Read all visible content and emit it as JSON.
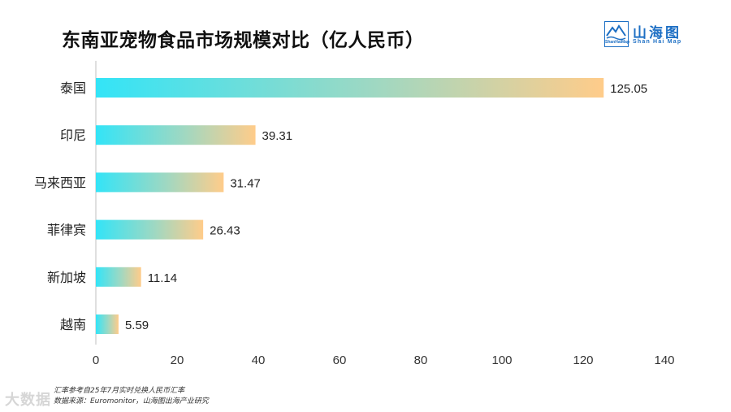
{
  "header": {
    "title": "东南亚宠物食品市场规模对比（亿人民币）"
  },
  "logo": {
    "mark_text": "ShanHaiMap",
    "name_cn": "山海图",
    "name_en": "Shan Hai Map"
  },
  "footnote": {
    "line1": "汇率参考自25年7月实时兑换人民币汇率",
    "line2": "数据来源：Euromonitor，山海图出海产业研究"
  },
  "watermark": "大数据",
  "colors": {
    "bar_start": "#33e4f7",
    "bar_mid": "#9fd8c2",
    "bar_end": "#ffcc8a",
    "axis": "#bfbfbf",
    "logo_blue": "#1d6fc4"
  },
  "chart_data": {
    "type": "bar",
    "orientation": "horizontal",
    "title": "东南亚宠物食品市场规模对比（亿人民币）",
    "categories": [
      "泰国",
      "印尼",
      "马来西亚",
      "菲律宾",
      "新加坡",
      "越南"
    ],
    "values": [
      125.05,
      39.31,
      31.47,
      26.43,
      11.14,
      5.59
    ],
    "value_labels": [
      "125.05",
      "39.31",
      "31.47",
      "26.43",
      "11.14",
      "5.59"
    ],
    "xlim": [
      0,
      140
    ],
    "xticks": [
      "0",
      "20",
      "40",
      "60",
      "80",
      "100",
      "120",
      "140"
    ],
    "xlabel": "",
    "ylabel": "",
    "grid": false
  }
}
